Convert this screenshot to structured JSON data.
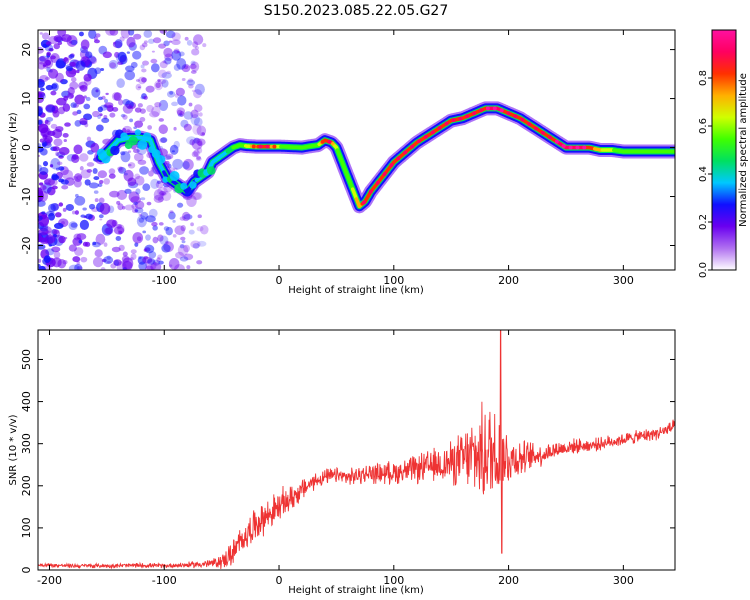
{
  "title": "S150.2023.085.22.05.G27",
  "spectrogram": {
    "xlabel": "Height of straight line (km)",
    "ylabel": "Frequency (Hz)",
    "xlim": [
      -210,
      345
    ],
    "ylim": [
      -25,
      24
    ],
    "xticks": [
      -200,
      -100,
      0,
      100,
      200,
      300
    ],
    "yticks": [
      -20,
      -10,
      0,
      10,
      20
    ],
    "colorbar": {
      "label": "Normalized spectral amplitude",
      "range": [
        0,
        1
      ],
      "ticks": [
        0.0,
        0.2,
        0.4,
        0.6,
        0.8
      ],
      "tick_labels": [
        "0.0",
        "0.2",
        "0.4",
        "0.6",
        "0.8"
      ],
      "colormap": [
        "#ffffff",
        "#b070f0",
        "#6a00f0",
        "#1010ff",
        "#00c8ff",
        "#00e060",
        "#40ff00",
        "#d0ff00",
        "#ffb000",
        "#ff3000",
        "#ff0060",
        "#ff10a0"
      ]
    }
  },
  "chart_data": [
    {
      "type": "heatmap",
      "xlabel": "Height of straight line (km)",
      "ylabel": "Frequency (Hz)",
      "xlim": [
        -210,
        345
      ],
      "ylim": [
        -25,
        24
      ],
      "ridge": {
        "x": [
          -155,
          -150,
          -140,
          -130,
          -120,
          -112,
          -105,
          -98,
          -92,
          -86,
          -80,
          -74,
          -68,
          -62,
          -58,
          -52,
          -46,
          -40,
          -34,
          -28,
          -20,
          -10,
          0,
          10,
          20,
          28,
          34,
          40,
          46,
          50,
          55,
          60,
          65,
          70,
          75,
          80,
          90,
          100,
          110,
          120,
          130,
          140,
          150,
          160,
          170,
          180,
          190,
          200,
          210,
          220,
          230,
          240,
          250,
          260,
          270,
          280,
          290,
          300,
          310,
          320,
          330,
          345
        ],
        "y": [
          -2,
          -1,
          1.5,
          2,
          2,
          1.5,
          -3,
          -6,
          -7,
          -8,
          -9,
          -7,
          -6,
          -5,
          -3,
          -2,
          -1,
          0,
          0.5,
          0.3,
          0.2,
          0.2,
          0.2,
          0.1,
          0,
          0.3,
          0.5,
          1.5,
          1,
          0,
          -3,
          -6,
          -9,
          -12,
          -11,
          -9,
          -6,
          -3,
          -1,
          1,
          2.5,
          4,
          5.5,
          6,
          7,
          8,
          8,
          7,
          6,
          4.5,
          3,
          1.5,
          0,
          0,
          0,
          -0.5,
          -0.5,
          -0.8,
          -0.8,
          -0.8,
          -0.8,
          -0.8
        ],
        "amplitude": [
          0.35,
          0.35,
          0.35,
          0.4,
          0.4,
          0.4,
          0.35,
          0.3,
          0.3,
          0.3,
          0.3,
          0.3,
          0.35,
          0.35,
          0.35,
          0.35,
          0.4,
          0.5,
          0.55,
          0.6,
          0.75,
          0.85,
          0.6,
          0.55,
          0.55,
          0.55,
          0.55,
          0.8,
          0.8,
          0.6,
          0.55,
          0.55,
          0.6,
          0.75,
          0.8,
          0.85,
          0.85,
          0.85,
          0.85,
          0.85,
          0.85,
          0.85,
          0.85,
          0.85,
          0.85,
          0.85,
          0.9,
          0.85,
          0.85,
          0.85,
          0.85,
          0.85,
          0.9,
          0.9,
          0.85,
          0.7,
          0.6,
          0.55,
          0.55,
          0.55,
          0.55,
          0.55
        ]
      },
      "noise_region": {
        "x_start": -210,
        "x_end": -65,
        "y_range": [
          -25,
          24
        ],
        "amplitude": 0.2
      }
    },
    {
      "type": "line",
      "title": "",
      "xlabel": "Height of straight line (km)",
      "ylabel": "SNR (10 * v/v)",
      "xlim": [
        -210,
        345
      ],
      "ylim": [
        0,
        570
      ],
      "xticks": [
        -200,
        -100,
        0,
        100,
        200,
        300
      ],
      "yticks": [
        0,
        100,
        200,
        300,
        400,
        500
      ],
      "series": [
        {
          "color": "#ee3333",
          "envelope_x": [
            -210,
            -180,
            -150,
            -120,
            -100,
            -80,
            -60,
            -50,
            -40,
            -30,
            -20,
            -10,
            0,
            10,
            20,
            30,
            40,
            50,
            60,
            70,
            80,
            90,
            100,
            110,
            120,
            130,
            140,
            150,
            160,
            170,
            180,
            185,
            190,
            195,
            200,
            210,
            220,
            230,
            240,
            250,
            260,
            270,
            280,
            290,
            300,
            310,
            320,
            330,
            340,
            345
          ],
          "envelope_mean": [
            12,
            10,
            10,
            11,
            10,
            12,
            15,
            20,
            40,
            80,
            110,
            130,
            150,
            170,
            190,
            210,
            220,
            225,
            220,
            225,
            230,
            230,
            232,
            235,
            240,
            245,
            250,
            255,
            262,
            270,
            275,
            278,
            280,
            265,
            265,
            265,
            270,
            275,
            285,
            290,
            295,
            295,
            300,
            305,
            310,
            315,
            320,
            325,
            335,
            340
          ],
          "envelope_spread": [
            6,
            6,
            6,
            7,
            6,
            8,
            12,
            20,
            40,
            40,
            45,
            45,
            45,
            40,
            30,
            25,
            22,
            22,
            22,
            25,
            28,
            30,
            32,
            35,
            40,
            45,
            50,
            60,
            80,
            110,
            140,
            150,
            160,
            110,
            80,
            50,
            40,
            30,
            25,
            22,
            20,
            18,
            18,
            18,
            18,
            18,
            18,
            18,
            20,
            20
          ],
          "peak": {
            "x": 193,
            "y": 570
          },
          "dip": {
            "x": 193,
            "y": 40
          }
        }
      ]
    }
  ]
}
